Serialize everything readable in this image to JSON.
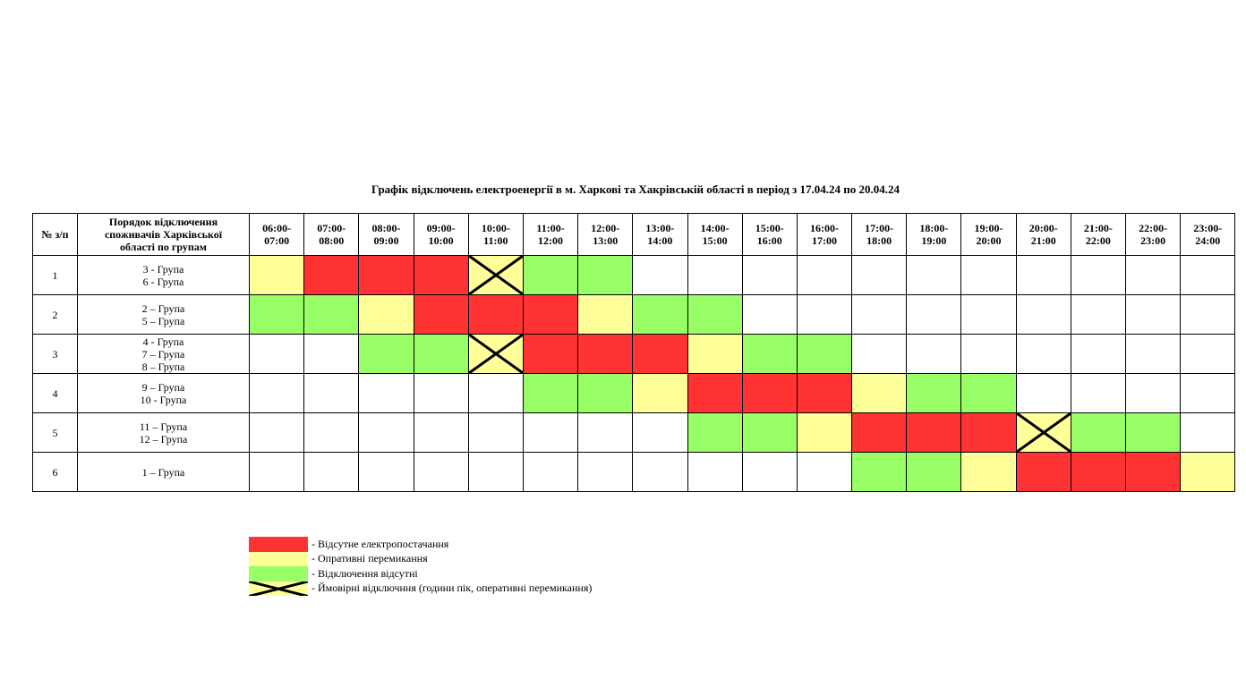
{
  "title": "Графік відключень електроенергії в м. Харкові та Хакрівській області в період з 17.04.24 по 20.04.24",
  "colors": {
    "R": "#ff3333",
    "Y": "#ffff99",
    "G": "#99ff66",
    "X": "#ffff99"
  },
  "header": {
    "num": "№ з/п",
    "groups": "Порядок відключення споживачів Харківської області по групам",
    "hours": [
      "06:00-07:00",
      "07:00-08:00",
      "08:00-09:00",
      "09:00-10:00",
      "10:00-11:00",
      "11:00-12:00",
      "12:00-13:00",
      "13:00-14:00",
      "14:00-15:00",
      "15:00-16:00",
      "16:00-17:00",
      "17:00-18:00",
      "18:00-19:00",
      "19:00-20:00",
      "20:00-21:00",
      "21:00-22:00",
      "22:00-23:00",
      "23:00-24:00"
    ]
  },
  "rows": [
    {
      "num": "1",
      "groups": [
        "3 -  Група",
        "6 -  Група"
      ],
      "cells": [
        "Y",
        "R",
        "R",
        "R",
        "X",
        "G",
        "G",
        "",
        "",
        "",
        "",
        "",
        "",
        "",
        "",
        "",
        "",
        ""
      ]
    },
    {
      "num": "2",
      "groups": [
        "2 – Група",
        "5 – Група"
      ],
      "cells": [
        "G",
        "G",
        "Y",
        "R",
        "R",
        "R",
        "Y",
        "G",
        "G",
        "",
        "",
        "",
        "",
        "",
        "",
        "",
        "",
        ""
      ]
    },
    {
      "num": "3",
      "groups": [
        "4  - Група",
        "7 – Група",
        "8 – Група"
      ],
      "cells": [
        "",
        "",
        "G",
        "G",
        "X",
        "R",
        "R",
        "R",
        "Y",
        "G",
        "G",
        "",
        "",
        "",
        "",
        "",
        "",
        ""
      ]
    },
    {
      "num": "4",
      "groups": [
        "9 – Група",
        "10 - Група"
      ],
      "cells": [
        "",
        "",
        "",
        "",
        "",
        "G",
        "G",
        "Y",
        "R",
        "R",
        "R",
        "Y",
        "G",
        "G",
        "",
        "",
        "",
        ""
      ]
    },
    {
      "num": "5",
      "groups": [
        "11 – Група",
        "12 – Група"
      ],
      "cells": [
        "",
        "",
        "",
        "",
        "",
        "",
        "",
        "",
        "G",
        "G",
        "Y",
        "R",
        "R",
        "R",
        "X",
        "G",
        "G",
        ""
      ]
    },
    {
      "num": "6",
      "groups": [
        "1 – Група"
      ],
      "cells": [
        "",
        "",
        "",
        "",
        "",
        "",
        "",
        "",
        "",
        "",
        "",
        "G",
        "G",
        "Y",
        "R",
        "R",
        "R",
        "Y"
      ]
    }
  ],
  "legend": [
    {
      "code": "R",
      "label": "- Відсутне електропостачання"
    },
    {
      "code": "Y",
      "label": "- Опративні перемикання"
    },
    {
      "code": "G",
      "label": "- Відключення відсутні"
    },
    {
      "code": "X",
      "label": "- Ймовірні відключння (години пік, оперативні перемикання)"
    }
  ]
}
